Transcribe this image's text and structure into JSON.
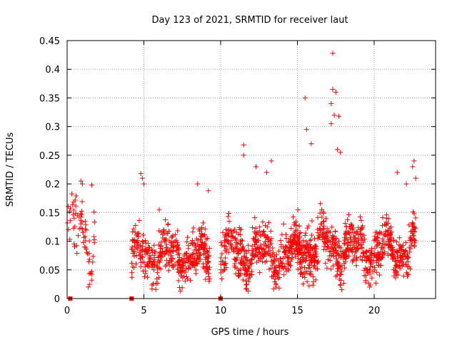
{
  "chart_data": {
    "type": "scatter",
    "title": "Day 123 of 2021, SRMTID for receiver laut",
    "xlabel": "GPS time / hours",
    "ylabel": "SRMTID / TECUs",
    "xlim": [
      0,
      24
    ],
    "ylim": [
      0,
      0.45
    ],
    "x_ticks": [
      0,
      5,
      10,
      15,
      20
    ],
    "x_tick_labels": [
      "0",
      "5",
      "10",
      "15",
      "20"
    ],
    "y_ticks": [
      0,
      0.05,
      0.1,
      0.15,
      0.2,
      0.25,
      0.3,
      0.35,
      0.4,
      0.45
    ],
    "y_tick_labels": [
      "0",
      "0.05",
      "0.1",
      "0.15",
      "0.2",
      "0.25",
      "0.3",
      "0.35",
      "0.4",
      "0.45"
    ],
    "grid": true,
    "marker": "plus",
    "color": "#ff0000",
    "zero_markers": [
      0.2,
      4.2,
      10.0
    ],
    "segments": [
      {
        "name": "segment-1",
        "x_start": 0.0,
        "x_end": 1.8,
        "samples": 70,
        "base": 0.11,
        "spread": 0.045,
        "peaks": [
          {
            "x": 0.9,
            "y": 0.205
          },
          {
            "x": 1.0,
            "y": 0.2
          },
          {
            "x": 1.6,
            "y": 0.198
          }
        ]
      },
      {
        "name": "segment-2",
        "x_start": 4.2,
        "x_end": 9.3,
        "samples": 420,
        "base": 0.075,
        "spread": 0.035,
        "peaks": [
          {
            "x": 4.8,
            "y": 0.218
          },
          {
            "x": 4.9,
            "y": 0.21
          },
          {
            "x": 5.0,
            "y": 0.2
          },
          {
            "x": 6.0,
            "y": 0.155
          },
          {
            "x": 8.5,
            "y": 0.2
          },
          {
            "x": 9.2,
            "y": 0.188
          }
        ]
      },
      {
        "name": "segment-3",
        "x_start": 10.0,
        "x_end": 15.2,
        "samples": 460,
        "base": 0.078,
        "spread": 0.035,
        "peaks": [
          {
            "x": 11.5,
            "y": 0.268
          },
          {
            "x": 11.5,
            "y": 0.25
          },
          {
            "x": 12.3,
            "y": 0.23
          },
          {
            "x": 13.0,
            "y": 0.22
          },
          {
            "x": 13.3,
            "y": 0.24
          },
          {
            "x": 14.1,
            "y": 0.13
          }
        ]
      },
      {
        "name": "segment-4",
        "x_start": 15.0,
        "x_end": 18.3,
        "samples": 330,
        "base": 0.09,
        "spread": 0.04,
        "peaks": [
          {
            "x": 15.5,
            "y": 0.35
          },
          {
            "x": 15.6,
            "y": 0.295
          },
          {
            "x": 15.9,
            "y": 0.27
          },
          {
            "x": 17.3,
            "y": 0.428
          },
          {
            "x": 17.3,
            "y": 0.365
          },
          {
            "x": 17.5,
            "y": 0.36
          },
          {
            "x": 17.2,
            "y": 0.34
          },
          {
            "x": 17.4,
            "y": 0.32
          },
          {
            "x": 17.7,
            "y": 0.318
          },
          {
            "x": 17.2,
            "y": 0.305
          },
          {
            "x": 17.6,
            "y": 0.26
          },
          {
            "x": 17.8,
            "y": 0.255
          }
        ]
      },
      {
        "name": "segment-5",
        "x_start": 18.3,
        "x_end": 22.7,
        "samples": 380,
        "base": 0.085,
        "spread": 0.033,
        "peaks": [
          {
            "x": 21.5,
            "y": 0.22
          },
          {
            "x": 22.1,
            "y": 0.2
          },
          {
            "x": 22.6,
            "y": 0.24
          },
          {
            "x": 22.5,
            "y": 0.23
          },
          {
            "x": 22.7,
            "y": 0.21
          }
        ]
      }
    ]
  }
}
